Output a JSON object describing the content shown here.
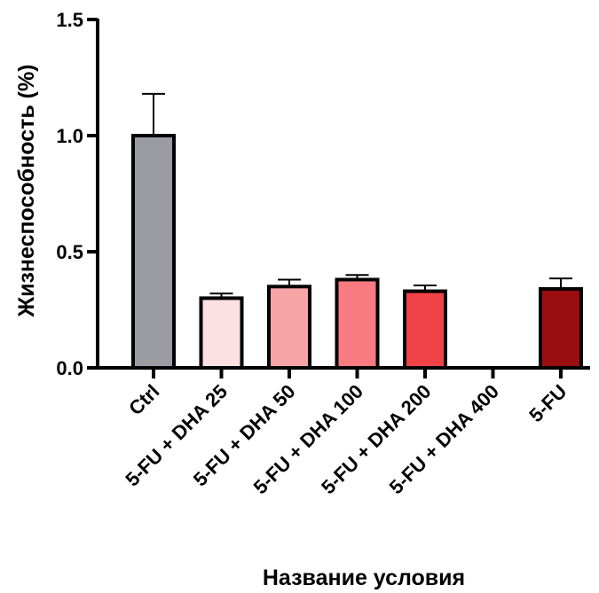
{
  "chart_data": {
    "type": "bar",
    "xlabel": "Название условия",
    "ylabel": "Жизнеспособность (%)",
    "ylim": [
      0,
      1.5
    ],
    "yticks": [
      "0.0",
      "0.5",
      "1.0",
      "1.5"
    ],
    "ytick_values": [
      0,
      0.5,
      1.0,
      1.5
    ],
    "categories": [
      "Ctrl",
      "5-FU + DHA 25",
      "5-FU + DHA 50",
      "5-FU + DHA 100",
      "5-FU + DHA 200",
      "5-FU + DHA 400",
      "5-FU"
    ],
    "values": [
      1.0,
      0.3,
      0.35,
      0.38,
      0.33,
      0.0,
      0.34
    ],
    "errors": [
      0.18,
      0.02,
      0.03,
      0.02,
      0.025,
      0.0,
      0.045
    ],
    "colors": [
      "#9b9ba3",
      "#fde0e2",
      "#f9a5a8",
      "#f77b80",
      "#f04347",
      "#f04347",
      "#9b0e10"
    ],
    "grid": false,
    "legend": "none"
  }
}
